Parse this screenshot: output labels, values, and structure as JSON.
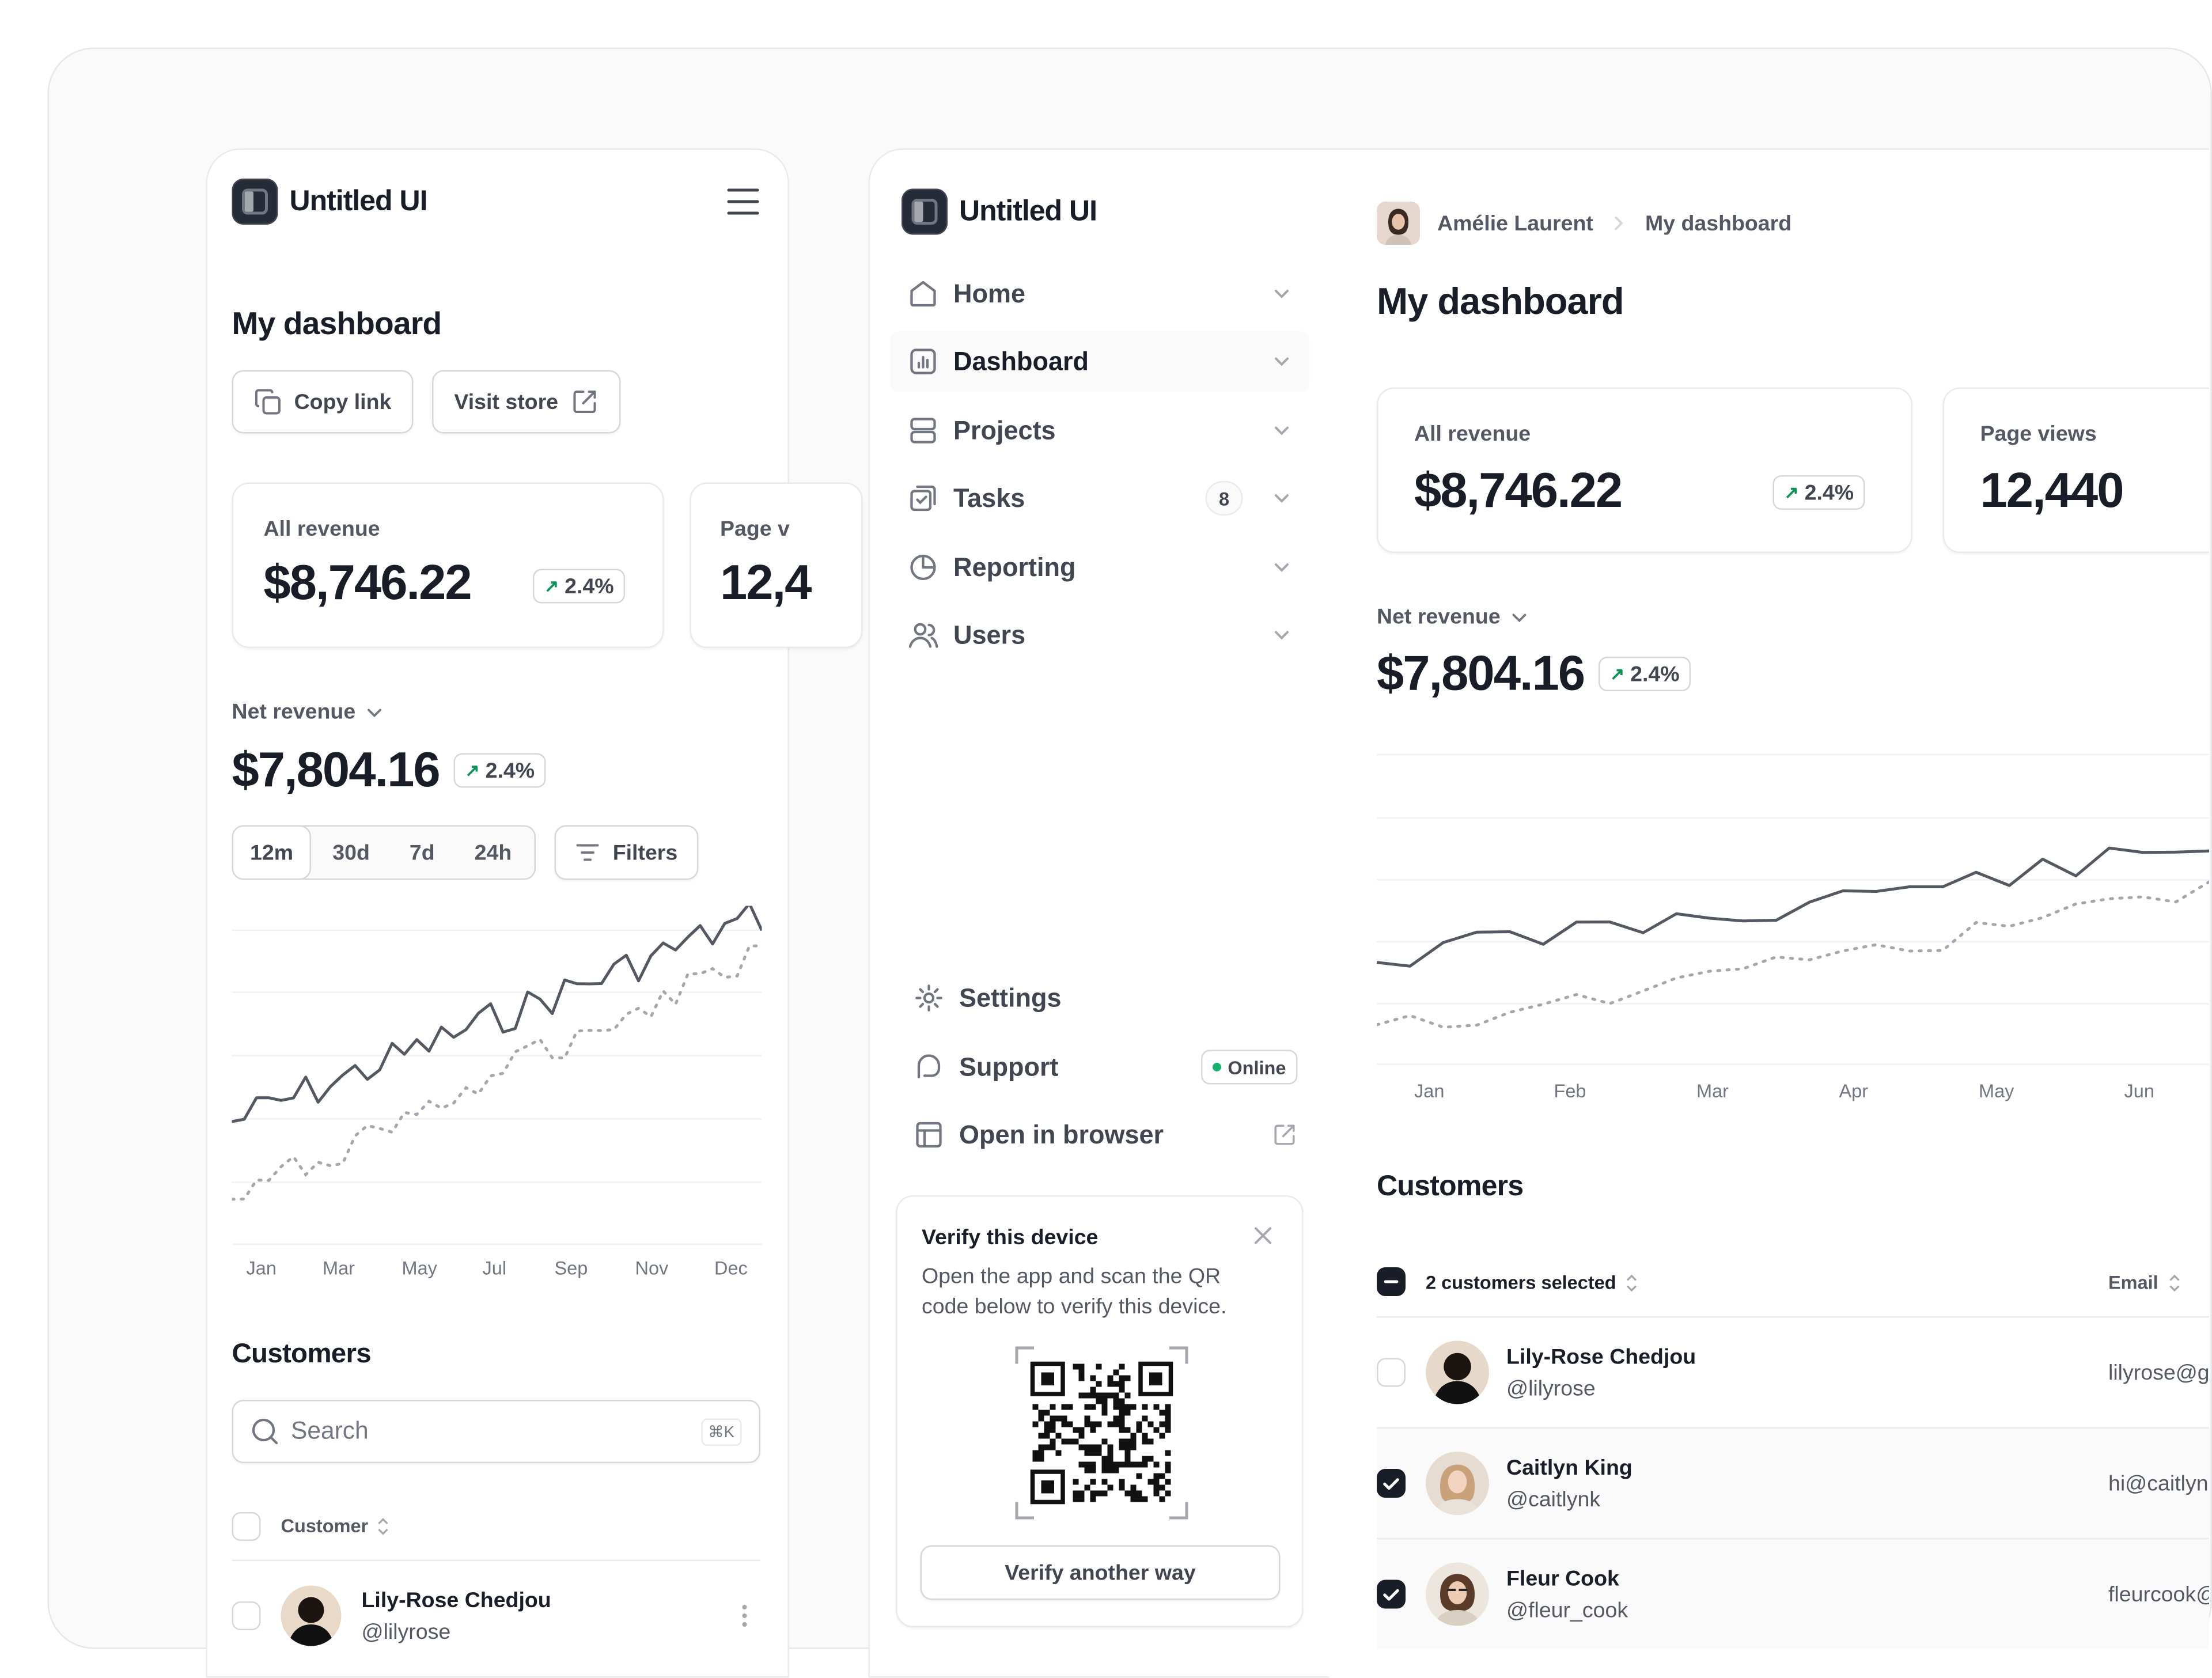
{
  "brand": {
    "name": "Untitled UI"
  },
  "mobile": {
    "page_title": "My dashboard",
    "copy_link_label": "Copy link",
    "visit_store_label": "Visit store",
    "revenue_card": {
      "label": "All revenue",
      "value": "$8,746.22",
      "change": "2.4%"
    },
    "pageviews_card_partial": {
      "label": "Page v",
      "value": "12,4"
    },
    "net_revenue": {
      "label": "Net revenue",
      "value": "$7,804.16",
      "change": "2.4%"
    },
    "ranges": [
      "12m",
      "30d",
      "7d",
      "24h"
    ],
    "filters_label": "Filters",
    "chart_x_labels": [
      "Jan",
      "Mar",
      "May",
      "Jul",
      "Sep",
      "Nov",
      "Dec"
    ],
    "customers_title": "Customers",
    "search_placeholder": "Search",
    "search_shortcut": "⌘K",
    "column_customer": "Customer",
    "row": {
      "name": "Lily-Rose Chedjou",
      "handle": "@lilyrose"
    }
  },
  "sidebar": {
    "items": [
      {
        "label": "Home",
        "icon": "home-icon"
      },
      {
        "label": "Dashboard",
        "icon": "bar-chart-icon",
        "active": true
      },
      {
        "label": "Projects",
        "icon": "layers-icon"
      },
      {
        "label": "Tasks",
        "icon": "check-square-icon",
        "count": "8"
      },
      {
        "label": "Reporting",
        "icon": "pie-chart-icon"
      },
      {
        "label": "Users",
        "icon": "users-icon"
      }
    ],
    "footer": [
      {
        "label": "Settings",
        "icon": "gear-icon"
      },
      {
        "label": "Support",
        "icon": "support-icon",
        "status": "Online"
      },
      {
        "label": "Open in browser",
        "icon": "browser-icon"
      }
    ],
    "verify": {
      "title": "Verify this device",
      "text": "Open the app and scan the QR code below to verify this device.",
      "button": "Verify another way"
    }
  },
  "desktop": {
    "breadcrumb": {
      "user": "Amélie Laurent",
      "page": "My dashboard"
    },
    "page_title": "My dashboard",
    "revenue_card": {
      "label": "All revenue",
      "value": "$8,746.22",
      "change": "2.4%"
    },
    "pageviews_card": {
      "label": "Page views",
      "value": "12,440"
    },
    "net_revenue": {
      "label": "Net revenue",
      "value": "$7,804.16",
      "change": "2.4%"
    },
    "chart_x_labels": [
      "Jan",
      "Feb",
      "Mar",
      "Apr",
      "May",
      "Jun"
    ],
    "customers_title": "Customers",
    "selected_label": "2 customers selected",
    "column_email": "Email",
    "rows": [
      {
        "name": "Lily-Rose Chedjou",
        "handle": "@lilyrose",
        "email": "lilyrose@g",
        "checked": false
      },
      {
        "name": "Caitlyn King",
        "handle": "@caitlynk",
        "email": "hi@caitlyn",
        "checked": true
      },
      {
        "name": "Fleur Cook",
        "handle": "@fleur_cook",
        "email": "fleurcook@",
        "checked": true
      }
    ]
  },
  "colors": {
    "accent": "#079455",
    "text": "#181d27",
    "muted": "#535862",
    "border": "#e9eaeb",
    "line": "#535862"
  }
}
